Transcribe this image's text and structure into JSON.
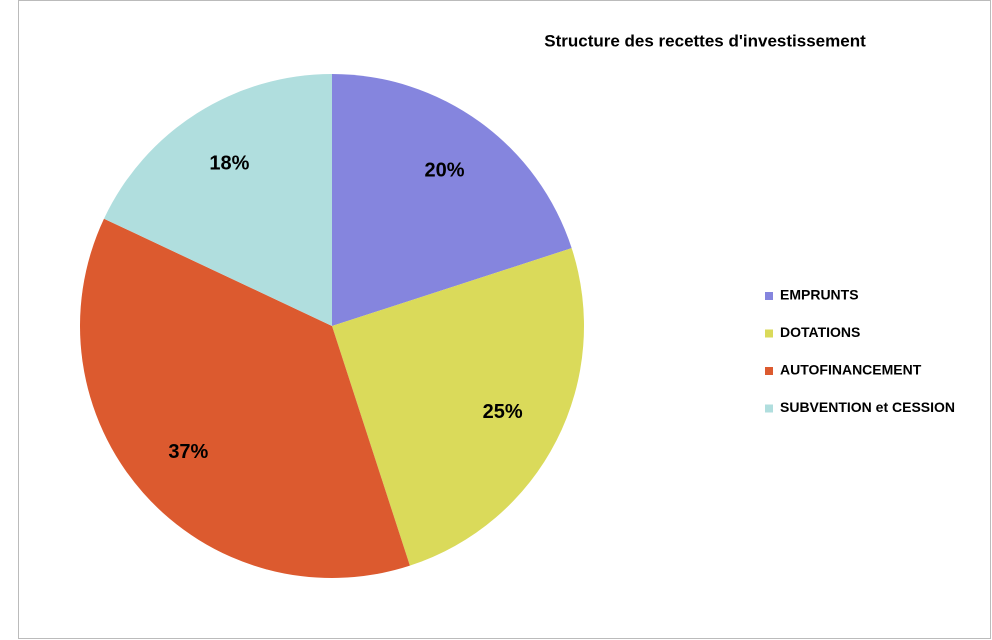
{
  "chart_data": {
    "type": "pie",
    "title": "Structure des recettes d'investissement",
    "categories": [
      "EMPRUNTS",
      "DOTATIONS",
      "AUTOFINANCEMENT",
      "SUBVENTION et CESSION"
    ],
    "values": [
      20,
      25,
      37,
      18
    ],
    "value_labels": [
      "20%",
      "25%",
      "37%",
      "18%"
    ],
    "colors": [
      "#8585de",
      "#dada5a",
      "#dc5a2f",
      "#b0dede"
    ],
    "legend": "right"
  }
}
